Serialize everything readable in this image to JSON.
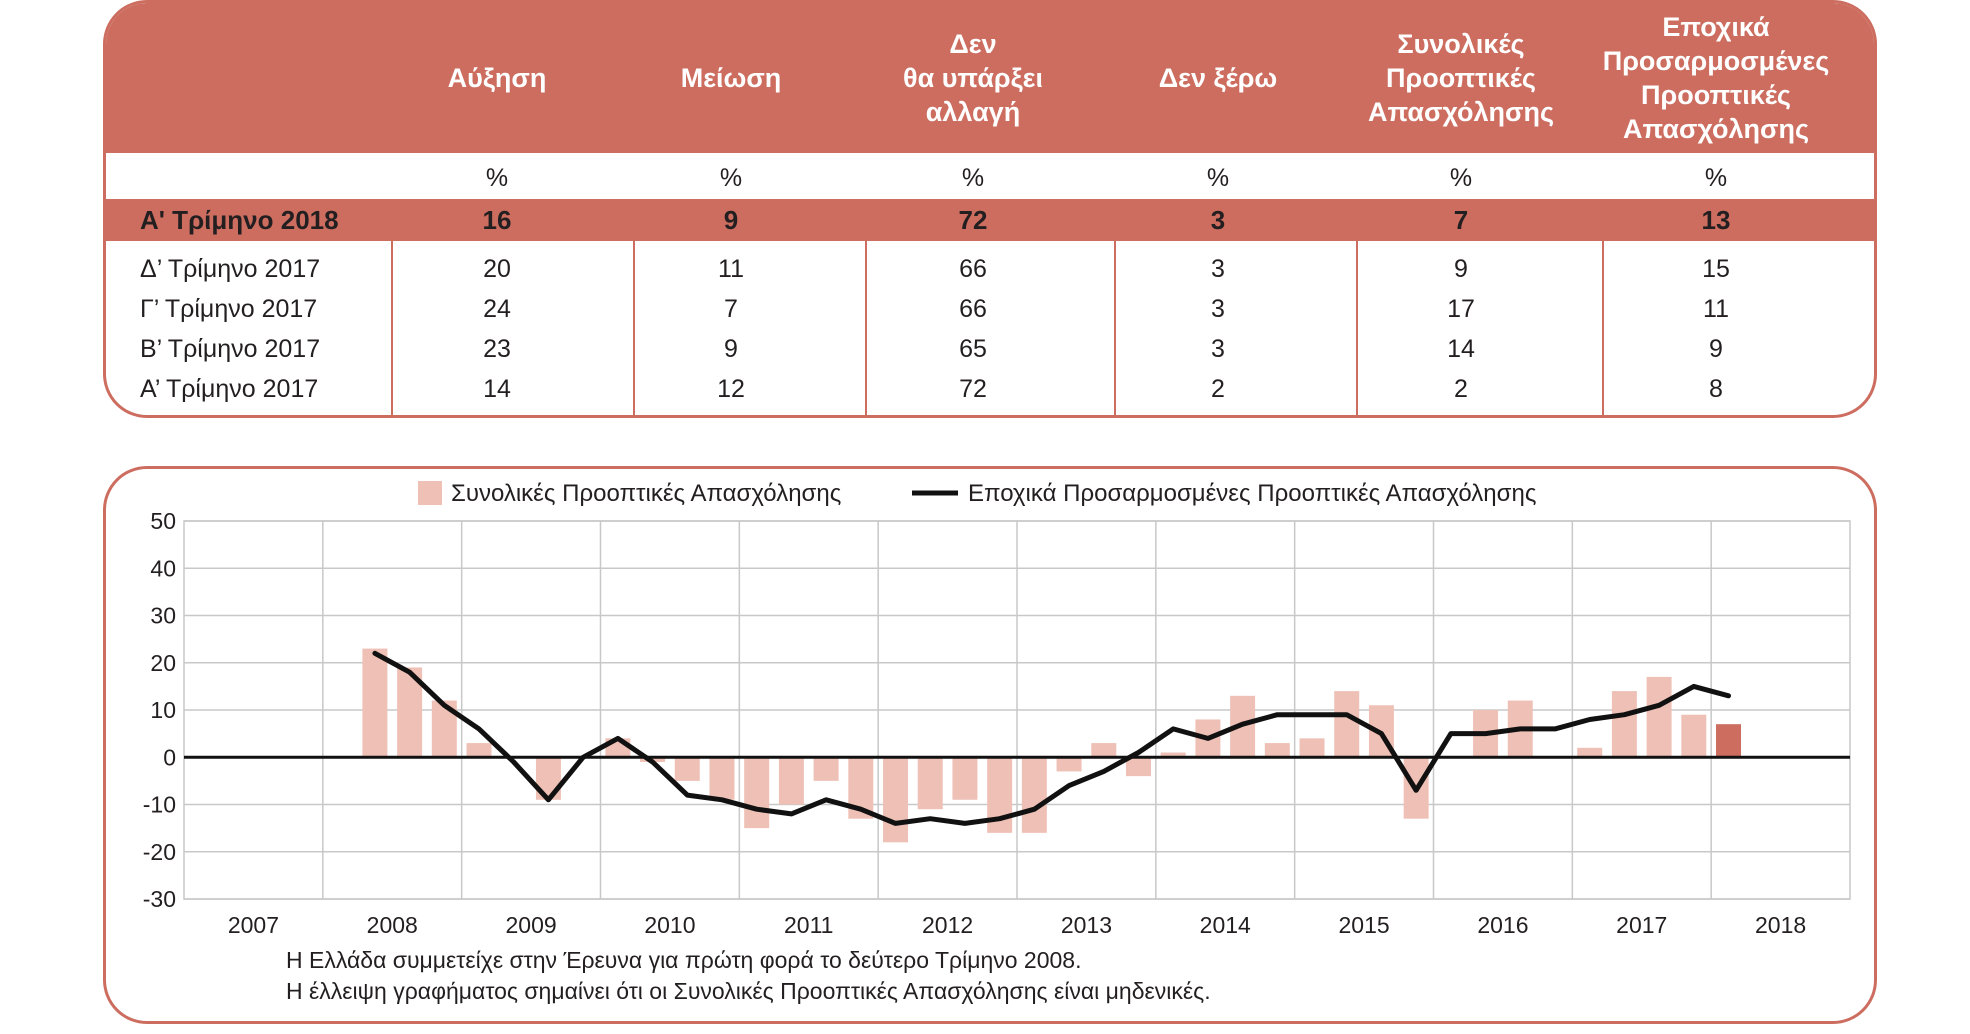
{
  "table": {
    "headers": [
      "Αύξηση",
      "Μείωση",
      "Δεν\nθα υπάρξει\nαλλαγή",
      "Δεν ξέρω",
      "Συνολικές\nΠροοπτικές\nΑπασχόλησης",
      "Εποχικά\nΠροσαρμοσμένες\nΠροοπτικές\nΑπασχόλησης"
    ],
    "unit_row": [
      "%",
      "%",
      "%",
      "%",
      "%",
      "%"
    ],
    "current": {
      "label": "Α' Τρίμηνο 2018",
      "values": [
        "16",
        "9",
        "72",
        "3",
        "7",
        "13"
      ]
    },
    "rows": [
      {
        "label": "Δ’ Τρίμηνο 2017",
        "values": [
          "20",
          "11",
          "66",
          "3",
          "9",
          "15"
        ]
      },
      {
        "label": "Γ’ Τρίμηνο 2017",
        "values": [
          "24",
          "7",
          "66",
          "3",
          "17",
          "11"
        ]
      },
      {
        "label": "Β’ Τρίμηνο 2017",
        "values": [
          "23",
          "9",
          "65",
          "3",
          "14",
          "9"
        ]
      },
      {
        "label": "Α’ Τρίμηνο 2017",
        "values": [
          "14",
          "12",
          "72",
          "2",
          "2",
          "8"
        ]
      }
    ]
  },
  "colors": {
    "accent": "#cc6d5f",
    "bar": "#efc1b6",
    "bar_current": "#cc6d5f",
    "line": "#111111"
  },
  "chart_data": {
    "type": "bar",
    "legend": [
      "Συνολικές Προοπτικές Απασχόλησης",
      "Εποχικά Προσαρμοσμένες Προοπτικές Απασχόλησης"
    ],
    "year_labels": [
      "2007",
      "2008",
      "2009",
      "2010",
      "2011",
      "2012",
      "2013",
      "2014",
      "2015",
      "2016",
      "2017",
      "2018"
    ],
    "yticks": [
      "50",
      "40",
      "30",
      "20",
      "10",
      "0",
      "-10",
      "-20",
      "-30"
    ],
    "ylim": [
      -30,
      50
    ],
    "first_quarter_index": 5,
    "series": [
      {
        "name": "Συνολικές Προοπτικές Απασχόλησης",
        "kind": "bar",
        "values": [
          23,
          19,
          12,
          3,
          0,
          -9,
          0,
          4,
          -1,
          -5,
          -9,
          -15,
          -10,
          -5,
          -13,
          -18,
          -11,
          -9,
          -16,
          -16,
          -3,
          3,
          -4,
          1,
          8,
          13,
          3,
          4,
          14,
          11,
          -13,
          0,
          10,
          12,
          0,
          2,
          14,
          17,
          9,
          7
        ]
      },
      {
        "name": "Εποχικά Προσαρμοσμένες Προοπτικές Απασχόλησης",
        "kind": "line",
        "values": [
          22,
          18,
          11,
          6,
          -1,
          -9,
          0,
          4,
          -1,
          -8,
          -9,
          -11,
          -12,
          -9,
          -11,
          -14,
          -13,
          -14,
          -13,
          -11,
          -6,
          -3,
          1,
          6,
          4,
          7,
          9,
          9,
          9,
          5,
          -7,
          5,
          5,
          6,
          6,
          8,
          9,
          11,
          15,
          13
        ]
      }
    ],
    "notes": [
      "Η Ελλάδα συμμετείχε στην Έρευνα για πρώτη φορά το δεύτερο Τρίμηνο 2008.",
      "Η έλλειψη γραφήματος σημαίνει ότι οι Συνολικές Προοπτικές Απασχόλησης είναι μηδενικές."
    ]
  }
}
